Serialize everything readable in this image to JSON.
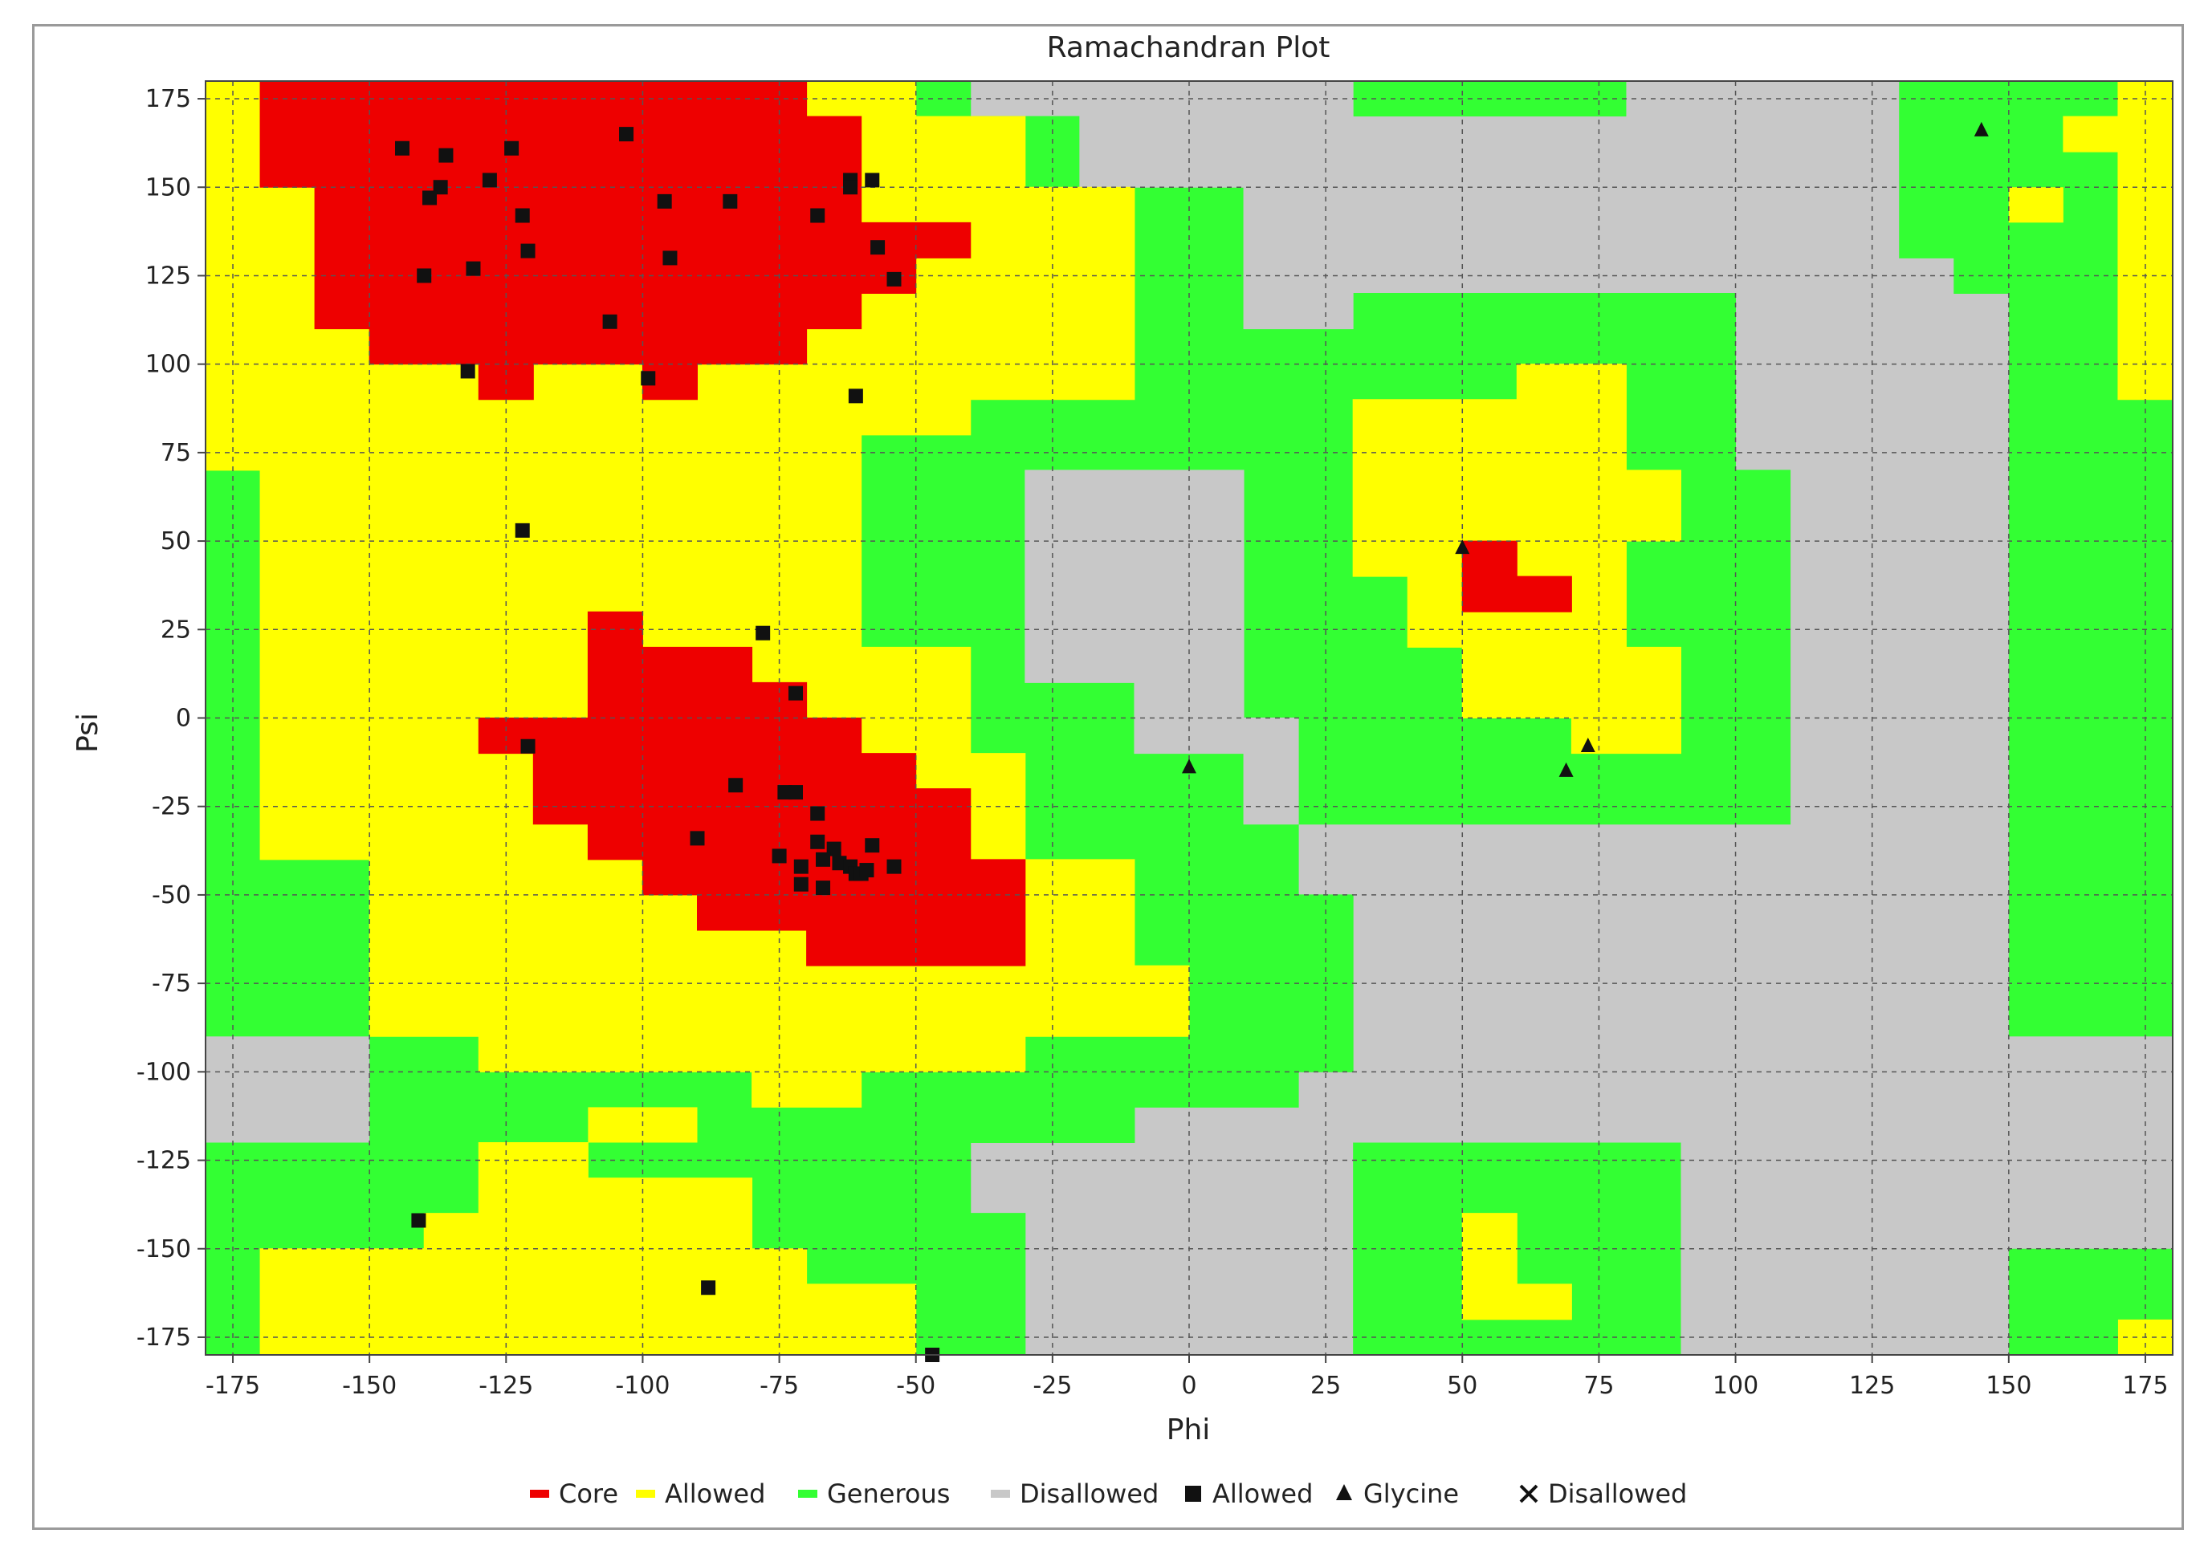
{
  "chart_data": {
    "type": "scatter",
    "title": "Ramachandran Plot",
    "xlabel": "Phi",
    "ylabel": "Psi",
    "xlim": [
      -180,
      180
    ],
    "ylim": [
      -180,
      180
    ],
    "grid": true,
    "legend_position": "bottom",
    "x_ticks": [
      "-175",
      "-150",
      "-125",
      "-100",
      "-75",
      "-50",
      "-25",
      "0",
      "25",
      "50",
      "75",
      "100",
      "125",
      "150",
      "175"
    ],
    "y_ticks": [
      "175",
      "150",
      "125",
      "100",
      "75",
      "50",
      "25",
      "0",
      "-25",
      "-50",
      "-75",
      "-100",
      "-125",
      "-150",
      "-175"
    ],
    "region_colors": {
      "core": "#ee0000",
      "allowed": "#ffff00",
      "generous": "#33ff33",
      "disallowed": "#c8c8c8"
    },
    "legend": [
      {
        "label": "Core",
        "kind": "region",
        "color": "#ee0000"
      },
      {
        "label": "Allowed",
        "kind": "region",
        "color": "#ffff00"
      },
      {
        "label": "Generous",
        "kind": "region",
        "color": "#33ff33"
      },
      {
        "label": "Disallowed",
        "kind": "region",
        "color": "#c8c8c8"
      },
      {
        "label": "Allowed",
        "kind": "marker",
        "marker": "square"
      },
      {
        "label": "Glycine",
        "kind": "marker",
        "marker": "triangle"
      },
      {
        "label": "Disallowed",
        "kind": "marker",
        "marker": "cross"
      }
    ],
    "series": [
      {
        "name": "Allowed",
        "marker": "square",
        "points": [
          [
            -144,
            161
          ],
          [
            -136,
            159
          ],
          [
            -124,
            161
          ],
          [
            -103,
            165
          ],
          [
            -137,
            150
          ],
          [
            -139,
            147
          ],
          [
            -128,
            152
          ],
          [
            -122,
            142
          ],
          [
            -96,
            146
          ],
          [
            -84,
            146
          ],
          [
            -68,
            142
          ],
          [
            -62,
            152
          ],
          [
            -62,
            150
          ],
          [
            -58,
            152
          ],
          [
            -121,
            132
          ],
          [
            -131,
            127
          ],
          [
            -140,
            125
          ],
          [
            -95,
            130
          ],
          [
            -57,
            133
          ],
          [
            -54,
            124
          ],
          [
            -106,
            112
          ],
          [
            -99,
            96
          ],
          [
            -132,
            98
          ],
          [
            -61,
            91
          ],
          [
            -122,
            53
          ],
          [
            -78,
            24
          ],
          [
            -72,
            7
          ],
          [
            -121,
            -8
          ],
          [
            -83,
            -19
          ],
          [
            -74,
            -21
          ],
          [
            -72,
            -21
          ],
          [
            -68,
            -27
          ],
          [
            -90,
            -34
          ],
          [
            -68,
            -35
          ],
          [
            -65,
            -37
          ],
          [
            -58,
            -36
          ],
          [
            -75,
            -39
          ],
          [
            -71,
            -42
          ],
          [
            -67,
            -40
          ],
          [
            -64,
            -41
          ],
          [
            -62,
            -42
          ],
          [
            -61,
            -44
          ],
          [
            -60,
            -44
          ],
          [
            -59,
            -43
          ],
          [
            -54,
            -42
          ],
          [
            -71,
            -47
          ],
          [
            -67,
            -48
          ],
          [
            -141,
            -142
          ],
          [
            -88,
            -161
          ],
          [
            -47,
            -180
          ]
        ]
      },
      {
        "name": "Glycine",
        "marker": "triangle",
        "points": [
          [
            145,
            166
          ],
          [
            50,
            48
          ],
          [
            0,
            -14
          ],
          [
            73,
            -8
          ],
          [
            69,
            -15
          ]
        ]
      }
    ]
  }
}
